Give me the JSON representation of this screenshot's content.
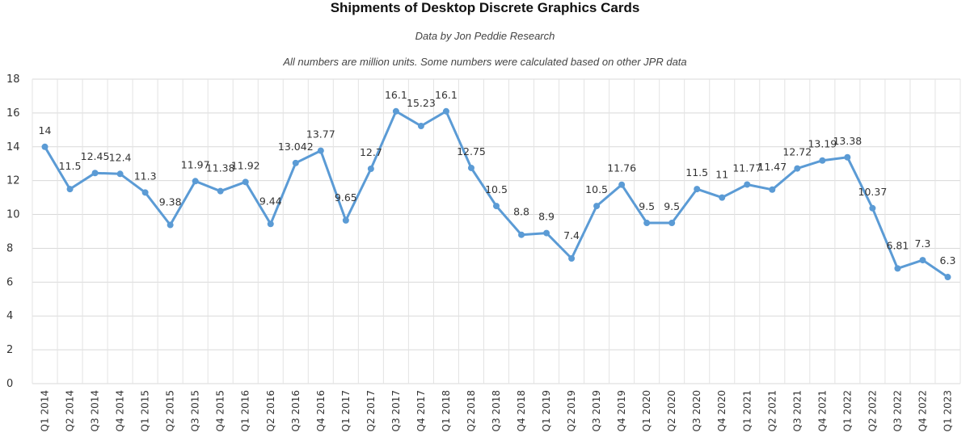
{
  "chart_data": {
    "type": "line",
    "title": "Shipments of Desktop Discrete Graphics Cards",
    "subtitle": "Data by Jon Peddie Research",
    "note": "All numbers are million units. Some numbers were calculated based on other JPR data",
    "xlabel": "",
    "ylabel": "",
    "ylim": [
      0,
      18
    ],
    "yticks": [
      0,
      2,
      4,
      6,
      8,
      10,
      12,
      14,
      16,
      18
    ],
    "grid": true,
    "legend": "none",
    "color": "#5b9bd5",
    "categories": [
      "Q1 2014",
      "Q2 2014",
      "Q3 2014",
      "Q4 2014",
      "Q1 2015",
      "Q2 2015",
      "Q3 2015",
      "Q4 2015",
      "Q1 2016",
      "Q2 2016",
      "Q3 2016",
      "Q4 2016",
      "Q1 2017",
      "Q2 2017",
      "Q3 2017",
      "Q4 2017",
      "Q1 2018",
      "Q2 2018",
      "Q3 2018",
      "Q4 2018",
      "Q1 2019",
      "Q2 2019",
      "Q3 2019",
      "Q4 2019",
      "Q1 2020",
      "Q2 2020",
      "Q3 2020",
      "Q4 2020",
      "Q1 2021",
      "Q2 2021",
      "Q3 2021",
      "Q4 2021",
      "Q1 2022",
      "Q2 2022",
      "Q3 2022",
      "Q4 2022",
      "Q1 2023"
    ],
    "values": [
      14,
      11.5,
      12.45,
      12.4,
      11.3,
      9.38,
      11.97,
      11.38,
      11.92,
      9.44,
      13.042,
      13.77,
      9.65,
      12.7,
      16.1,
      15.23,
      16.1,
      12.75,
      10.5,
      8.8,
      8.9,
      7.4,
      10.5,
      11.76,
      9.5,
      9.5,
      11.5,
      11,
      11.77,
      11.47,
      12.72,
      13.19,
      13.38,
      10.37,
      6.81,
      7.3,
      6.3
    ],
    "data_labels": [
      "14",
      "11.5",
      "12.45",
      "12.4",
      "11.3",
      "9.38",
      "11.97",
      "11.38",
      "11.92",
      "9.44",
      "13.042",
      "13.77",
      "9.65",
      "12.7",
      "16.1",
      "15.23",
      "16.1",
      "12.75",
      "10.5",
      "8.8",
      "8.9",
      "7.4",
      "10.5",
      "11.76",
      "9.5",
      "9.5",
      "11.5",
      "11",
      "11.77",
      "11.47",
      "12.72",
      "13.19",
      "13.38",
      "10.37",
      "6.81",
      "7.3",
      "6.3"
    ]
  }
}
